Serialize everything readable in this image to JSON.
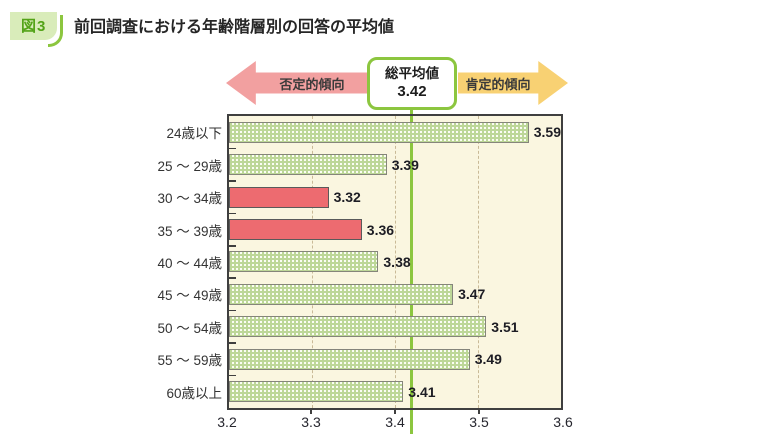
{
  "figure": {
    "tag": "図3",
    "title": "前回調査における年齢階層別の回答の平均値"
  },
  "legend_arrow": {
    "negative_label": "否定的傾向",
    "positive_label": "肯定的傾向",
    "average_box": {
      "label": "総平均値",
      "value": "3.42"
    }
  },
  "chart_data": {
    "type": "bar",
    "orientation": "horizontal",
    "title": "前回調査における年齢階層別の回答の平均値",
    "categories": [
      "24歳以下",
      "25 〜 29歳",
      "30 〜 34歳",
      "35 〜 39歳",
      "40 〜 44歳",
      "45 〜 49歳",
      "50 〜 54歳",
      "55 〜 59歳",
      "60歳以上"
    ],
    "values": [
      3.59,
      3.39,
      3.32,
      3.36,
      3.38,
      3.47,
      3.51,
      3.49,
      3.41
    ],
    "bar_styles": [
      "green",
      "green",
      "red",
      "red",
      "green",
      "green",
      "green",
      "green",
      "green"
    ],
    "overall_average": 3.42,
    "xlim": [
      3.2,
      3.6
    ],
    "x_ticks": [
      "3.2",
      "3.3",
      "3.4",
      "3.5",
      "3.6"
    ],
    "gridline_values": [
      3.3,
      3.4,
      3.5
    ],
    "grid": "dashed-vertical",
    "legend_position": "top",
    "colors": {
      "green_bar_pattern": "#bdd798",
      "green_bar_bg": "#fbfdf4",
      "red_bar": "#ed6b70",
      "average_line": "#8cc63f",
      "plot_background": "#faf6e0",
      "negative_arrow": "#f2a0a0",
      "positive_arrow": "#f8d173",
      "gridline": "#c9ba97",
      "tag_background": "#d9ecba",
      "tag_text": "#53a318"
    }
  }
}
